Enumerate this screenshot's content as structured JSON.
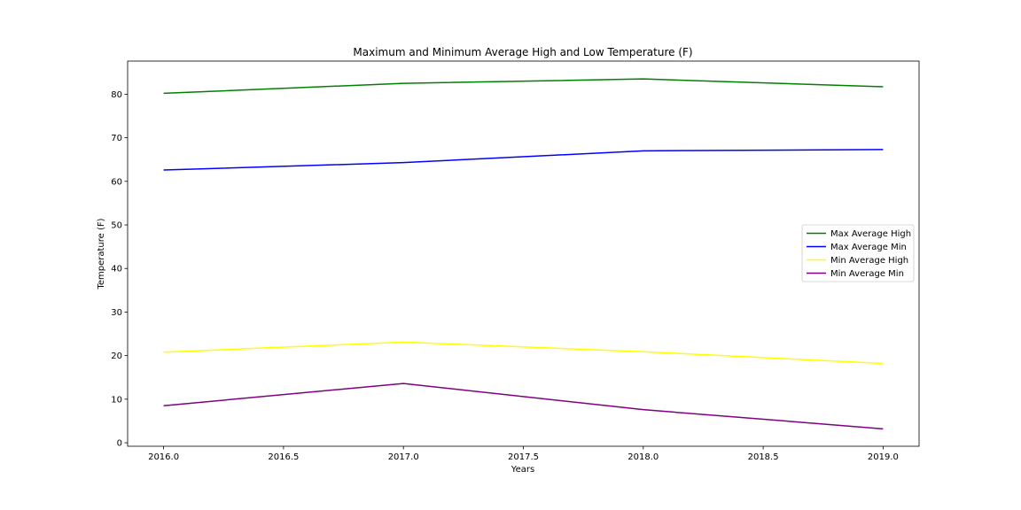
{
  "chart_data": {
    "type": "line",
    "title": "Maximum and Minimum Average High and Low Temperature (F)",
    "xlabel": "Years",
    "ylabel": "Temperature (F)",
    "x": [
      2016.0,
      2017.0,
      2018.0,
      2019.0
    ],
    "xlim": [
      2015.85,
      2019.15
    ],
    "ylim": [
      -0.8,
      87.6
    ],
    "xticks": [
      2016.0,
      2016.5,
      2017.0,
      2017.5,
      2018.0,
      2018.5,
      2019.0
    ],
    "xtick_labels": [
      "2016.0",
      "2016.5",
      "2017.0",
      "2017.5",
      "2018.0",
      "2018.5",
      "2019.0"
    ],
    "yticks": [
      0,
      10,
      20,
      30,
      40,
      50,
      60,
      70,
      80
    ],
    "ytick_labels": [
      "0",
      "10",
      "20",
      "30",
      "40",
      "50",
      "60",
      "70",
      "80"
    ],
    "grid": false,
    "legend_position": "center-right",
    "series": [
      {
        "name": "Max Average High",
        "color": "#008000",
        "values": [
          80.2,
          82.5,
          83.5,
          81.7
        ]
      },
      {
        "name": "Max Average Min",
        "color": "#0000ff",
        "values": [
          62.6,
          64.3,
          67.0,
          67.3
        ]
      },
      {
        "name": "Min Average High",
        "color": "#ffff00",
        "values": [
          20.8,
          23.1,
          20.9,
          18.2
        ]
      },
      {
        "name": "Min Average Min",
        "color": "#800080",
        "values": [
          8.5,
          13.6,
          7.6,
          3.2
        ]
      }
    ]
  }
}
